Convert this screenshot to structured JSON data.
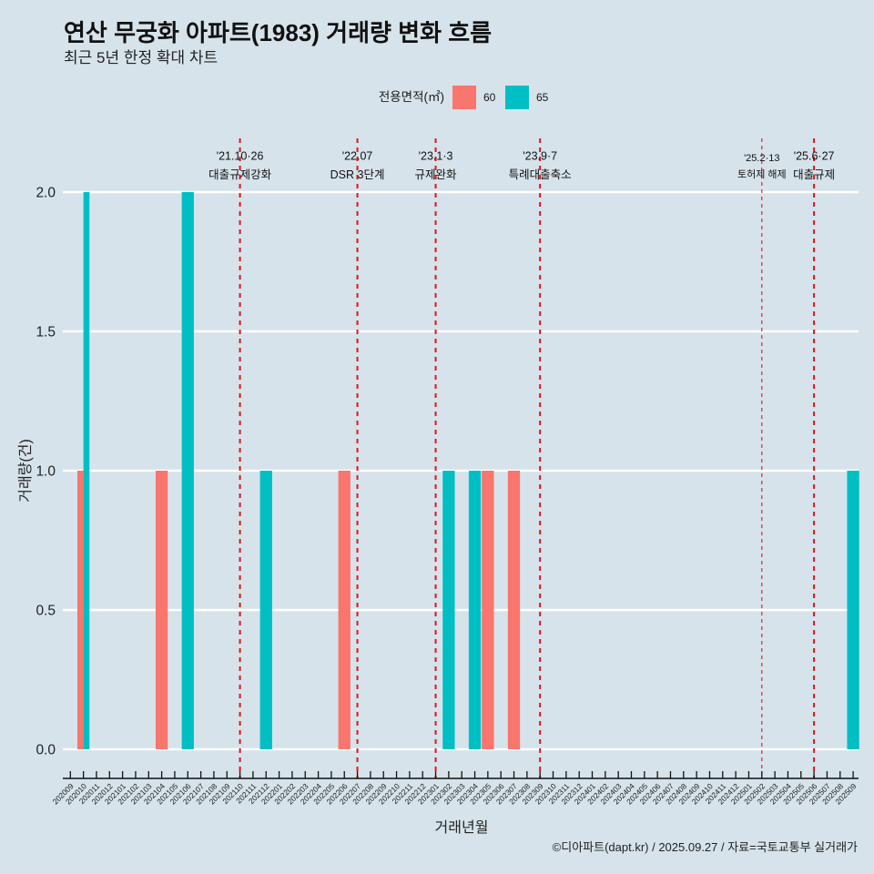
{
  "header": {
    "title": "연산 무궁화 아파트(1983) 거래량 변화 흐름",
    "subtitle": "최근 5년 한정 확대 차트"
  },
  "caption": "©디아파트(dapt.kr) / 2025.09.27 / 자료=국토교통부 실거래가",
  "colors": {
    "background": "#d6e3ea",
    "gridline": "#ffffff",
    "annotation_line": "#e3121b"
  },
  "chart_data": {
    "type": "bar",
    "title": "연산 무궁화 아파트(1983) 거래량 변화 흐름",
    "subtitle": "최근 5년 한정 확대 차트",
    "xlabel": "거래년월",
    "ylabel": "거래량(건)",
    "ylim": [
      0,
      2
    ],
    "yticks": [
      {
        "value": 0,
        "label": "0.0"
      },
      {
        "value": 0.5,
        "label": "0.5"
      },
      {
        "value": 1,
        "label": "1.0"
      },
      {
        "value": 1.5,
        "label": "1.5"
      },
      {
        "value": 2,
        "label": "2.0"
      }
    ],
    "grid": true,
    "legend": {
      "title": "전용면적(㎡)",
      "position": "top",
      "items": [
        {
          "label": "60",
          "color": "#F8766D"
        },
        {
          "label": "65",
          "color": "#00BFC4"
        }
      ]
    },
    "categories": [
      "202009",
      "202010",
      "202011",
      "202012",
      "202101",
      "202102",
      "202103",
      "202104",
      "202105",
      "202106",
      "202107",
      "202108",
      "202109",
      "202110",
      "202111",
      "202112",
      "202201",
      "202202",
      "202203",
      "202204",
      "202205",
      "202206",
      "202207",
      "202208",
      "202209",
      "202210",
      "202211",
      "202212",
      "202301",
      "202302",
      "202303",
      "202304",
      "202305",
      "202306",
      "202307",
      "202308",
      "202309",
      "202310",
      "202311",
      "202312",
      "202401",
      "202402",
      "202403",
      "202404",
      "202405",
      "202406",
      "202407",
      "202408",
      "202409",
      "202410",
      "202411",
      "202412",
      "202501",
      "202502",
      "202503",
      "202504",
      "202505",
      "202506",
      "202507",
      "202508",
      "202509"
    ],
    "series": [
      {
        "name": "60",
        "color": "#F8766D",
        "values": {
          "202010": 1,
          "202104": 1,
          "202206": 1,
          "202305": 1,
          "202307": 1
        }
      },
      {
        "name": "65",
        "color": "#00BFC4",
        "values": {
          "202010": 2,
          "202106": 2,
          "202112": 1,
          "202302": 1,
          "202304": 1,
          "202509": 1
        }
      }
    ],
    "annotations": [
      {
        "x": "202110",
        "date": "'21.10·26",
        "label": "대출규제강화",
        "minor": false
      },
      {
        "x": "202207",
        "date": "'22.07",
        "label": "DSR 3단계",
        "minor": false
      },
      {
        "x": "202301",
        "date": "'23.1·3",
        "label": "규제완화",
        "minor": false
      },
      {
        "x": "202309",
        "date": "'23.9·7",
        "label": "특례대출축소",
        "minor": false
      },
      {
        "x": "202502",
        "date": "'25.2·13",
        "label": "토허제 해제",
        "minor": true
      },
      {
        "x": "202506",
        "date": "'25.6·27",
        "label": "대출규제",
        "minor": false
      }
    ]
  }
}
